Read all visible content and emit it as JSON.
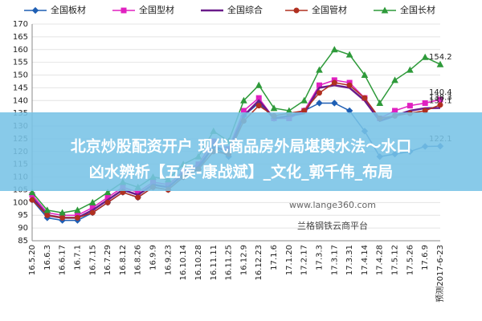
{
  "chart_data": {
    "type": "line",
    "categories": [
      "16.5.20",
      "16.6.3",
      "16.6.17",
      "16.7.1",
      "16.7.15",
      "16.7.29",
      "16.8.12",
      "16.8.26",
      "16.9.9",
      "16.9.23",
      "16.10.14",
      "16.10.28",
      "16.11.11",
      "16.11.25",
      "16.12.9",
      "16.12.23",
      "17.1.6",
      "17.1.20",
      "17.2.17",
      "17.3.3",
      "17.3.17",
      "17.3.31",
      "17.4.14",
      "17.4.28",
      "17.5.12",
      "17.5.26",
      "17.6.9",
      "预测2017-6-23"
    ],
    "series": [
      {
        "name": "全国板材",
        "color": "#1f5fb4",
        "marker": "diamond",
        "values": [
          101,
          94,
          93,
          93,
          96,
          100,
          104,
          102,
          106,
          105,
          110,
          113,
          122,
          118,
          134,
          139,
          133,
          134,
          136,
          139,
          139,
          136,
          128,
          118,
          119,
          120,
          122,
          122.1
        ]
      },
      {
        "name": "全国型材",
        "color": "#e020c0",
        "marker": "square",
        "values": [
          103,
          96,
          95,
          95,
          98,
          102,
          106,
          104,
          108,
          107,
          112,
          115,
          124,
          121,
          136,
          141,
          133,
          133,
          136,
          146,
          148,
          147,
          141,
          133,
          136,
          138,
          139,
          140.4
        ]
      },
      {
        "name": "全国综合",
        "color": "#6a1b8a",
        "marker": "none",
        "values": [
          102,
          95,
          94,
          94,
          97,
          101,
          105,
          103,
          107,
          106,
          111,
          114,
          122,
          120,
          134,
          140,
          133,
          134,
          135,
          145,
          146,
          145,
          140,
          132,
          134,
          136,
          137,
          137.1
        ]
      },
      {
        "name": "全国管材",
        "color": "#b03020",
        "marker": "circle",
        "values": [
          101,
          95,
          94,
          94,
          96,
          100,
          104,
          102,
          106,
          105,
          110,
          113,
          120,
          119,
          132,
          138,
          134,
          135,
          136,
          143,
          147,
          146,
          141,
          133,
          134,
          135,
          136,
          138.3
        ]
      },
      {
        "name": "全国长材",
        "color": "#2e9a3a",
        "marker": "triangle",
        "values": [
          104,
          97,
          96,
          97,
          100,
          104,
          108,
          106,
          110,
          109,
          115,
          118,
          128,
          124,
          140,
          146,
          137,
          136,
          140,
          152,
          160,
          158,
          150,
          139,
          148,
          152,
          157,
          154.2
        ]
      }
    ],
    "ylim": [
      85,
      170
    ],
    "yticks": [
      85,
      90,
      95,
      100,
      105,
      110,
      115,
      120,
      125,
      130,
      135,
      140,
      145,
      150,
      155,
      160,
      165,
      170
    ],
    "grid": true
  },
  "banner": {
    "line1": "北京炒股配资开户 现代商品房外局堪舆水法～水口",
    "line2": "凶水辨析【五侯-康战斌】_文化_郭千伟_布局"
  },
  "watermark": {
    "url": "www.lange360.com",
    "brand": "兰格钢铁云商平台"
  }
}
